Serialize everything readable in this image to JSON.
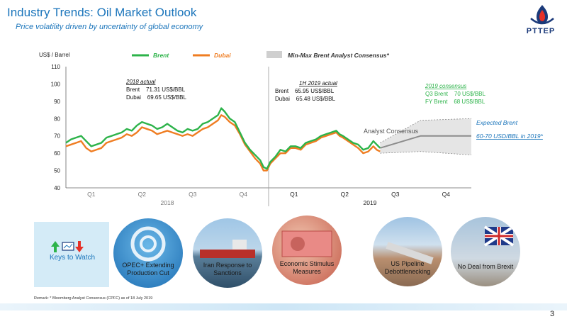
{
  "header": {
    "title": "Industry Trends: Oil Market Outlook",
    "subtitle": "Price volatility driven by uncertainty of global economy",
    "logo_text": "PTTEP"
  },
  "chart_data": {
    "type": "line",
    "ylabel": "US$ / Barrel",
    "ylim": [
      40,
      110
    ],
    "yticks": [
      40,
      50,
      60,
      70,
      80,
      90,
      100,
      110
    ],
    "quarters": [
      "Q1",
      "Q2",
      "Q3",
      "Q4",
      "Q1",
      "Q2",
      "Q3",
      "Q4"
    ],
    "years": [
      "2018",
      "2019"
    ],
    "legend": {
      "brent": "Brent",
      "dubai": "Dubai",
      "consensus": "Min-Max Brent Analyst Consensus*"
    },
    "colors": {
      "brent": "#2db34a",
      "dubai": "#ef7d22",
      "consensus_band": "#d0d0d0",
      "consensus_line": "#8c8c8c",
      "divider": "#9a9a9a"
    },
    "x_unit": "month (Jan 2018 = 0)",
    "series": [
      {
        "name": "Brent",
        "points": [
          [
            0,
            66
          ],
          [
            0.3,
            68
          ],
          [
            0.6,
            69
          ],
          [
            0.9,
            70
          ],
          [
            1.2,
            67
          ],
          [
            1.5,
            64
          ],
          [
            1.8,
            65
          ],
          [
            2.1,
            66
          ],
          [
            2.4,
            69
          ],
          [
            2.7,
            70
          ],
          [
            3.0,
            71
          ],
          [
            3.3,
            72
          ],
          [
            3.6,
            74
          ],
          [
            3.9,
            73
          ],
          [
            4.2,
            76
          ],
          [
            4.5,
            78
          ],
          [
            4.8,
            77
          ],
          [
            5.1,
            76
          ],
          [
            5.4,
            74
          ],
          [
            5.7,
            75
          ],
          [
            6.0,
            77
          ],
          [
            6.3,
            75
          ],
          [
            6.6,
            73
          ],
          [
            6.9,
            72
          ],
          [
            7.2,
            74
          ],
          [
            7.5,
            73
          ],
          [
            7.8,
            74
          ],
          [
            8.1,
            77
          ],
          [
            8.4,
            78
          ],
          [
            8.7,
            80
          ],
          [
            9.0,
            82
          ],
          [
            9.2,
            86
          ],
          [
            9.4,
            84
          ],
          [
            9.7,
            80
          ],
          [
            10.0,
            78
          ],
          [
            10.3,
            72
          ],
          [
            10.6,
            66
          ],
          [
            10.9,
            62
          ],
          [
            11.2,
            59
          ],
          [
            11.5,
            56
          ],
          [
            11.7,
            52
          ],
          [
            11.9,
            51
          ],
          [
            12.1,
            55
          ],
          [
            12.4,
            58
          ],
          [
            12.7,
            62
          ],
          [
            13.0,
            61
          ],
          [
            13.3,
            64
          ],
          [
            13.6,
            64
          ],
          [
            13.9,
            63
          ],
          [
            14.2,
            66
          ],
          [
            14.5,
            67
          ],
          [
            14.8,
            68
          ],
          [
            15.1,
            70
          ],
          [
            15.4,
            71
          ],
          [
            15.7,
            72
          ],
          [
            16.0,
            73
          ],
          [
            16.2,
            71
          ],
          [
            16.4,
            70
          ],
          [
            16.7,
            68
          ],
          [
            17.0,
            66
          ],
          [
            17.3,
            65
          ],
          [
            17.6,
            62
          ],
          [
            17.9,
            63
          ],
          [
            18.2,
            67
          ],
          [
            18.4,
            65
          ],
          [
            18.6,
            63
          ]
        ]
      },
      {
        "name": "Dubai",
        "points": [
          [
            0,
            64
          ],
          [
            0.3,
            65
          ],
          [
            0.6,
            66
          ],
          [
            0.9,
            67
          ],
          [
            1.2,
            63
          ],
          [
            1.5,
            61
          ],
          [
            1.8,
            62
          ],
          [
            2.1,
            63
          ],
          [
            2.4,
            66
          ],
          [
            2.7,
            67
          ],
          [
            3.0,
            68
          ],
          [
            3.3,
            69
          ],
          [
            3.6,
            71
          ],
          [
            3.9,
            70
          ],
          [
            4.2,
            72
          ],
          [
            4.5,
            75
          ],
          [
            4.8,
            74
          ],
          [
            5.1,
            73
          ],
          [
            5.4,
            71
          ],
          [
            5.7,
            72
          ],
          [
            6.0,
            73
          ],
          [
            6.3,
            72
          ],
          [
            6.6,
            71
          ],
          [
            6.9,
            70
          ],
          [
            7.2,
            71
          ],
          [
            7.5,
            70
          ],
          [
            7.8,
            72
          ],
          [
            8.1,
            74
          ],
          [
            8.4,
            75
          ],
          [
            8.7,
            77
          ],
          [
            9.0,
            79
          ],
          [
            9.2,
            82
          ],
          [
            9.4,
            81
          ],
          [
            9.7,
            78
          ],
          [
            10.0,
            76
          ],
          [
            10.3,
            71
          ],
          [
            10.6,
            65
          ],
          [
            10.9,
            61
          ],
          [
            11.2,
            57
          ],
          [
            11.5,
            54
          ],
          [
            11.7,
            50
          ],
          [
            11.9,
            50
          ],
          [
            12.1,
            54
          ],
          [
            12.4,
            57
          ],
          [
            12.7,
            60
          ],
          [
            13.0,
            60
          ],
          [
            13.3,
            63
          ],
          [
            13.6,
            63
          ],
          [
            13.9,
            62
          ],
          [
            14.2,
            65
          ],
          [
            14.5,
            66
          ],
          [
            14.8,
            67
          ],
          [
            15.1,
            69
          ],
          [
            15.4,
            70
          ],
          [
            15.7,
            71
          ],
          [
            16.0,
            72
          ],
          [
            16.2,
            70
          ],
          [
            16.4,
            69
          ],
          [
            16.7,
            67
          ],
          [
            17.0,
            65
          ],
          [
            17.3,
            63
          ],
          [
            17.6,
            60
          ],
          [
            17.9,
            61
          ],
          [
            18.2,
            64
          ],
          [
            18.4,
            62
          ],
          [
            18.6,
            61
          ]
        ]
      }
    ],
    "consensus": {
      "label": "Analyst Consensus",
      "center": [
        [
          18.6,
          63
        ],
        [
          21,
          70
        ],
        [
          24,
          70
        ]
      ],
      "upper": [
        [
          18.6,
          66
        ],
        [
          21,
          79
        ],
        [
          24,
          80
        ]
      ],
      "lower": [
        [
          18.6,
          60
        ],
        [
          21,
          61
        ],
        [
          24,
          59
        ]
      ]
    },
    "annotations": {
      "actual_2018_title": "2018 actual",
      "actual_2018_brent": "Brent    71.31 US$/BBL",
      "actual_2018_dubai": "Dubai    69.65 US$/BBL",
      "actual_1h2019_title": "1H  2019 actual",
      "actual_1h2019_brent": "Brent    65.95 US$/BBL",
      "actual_1h2019_dubai": "Dubai    65.48 US$/BBL",
      "consensus_title": "2019 consensus",
      "consensus_q3": "Q3 Brent    70 US$/BBL",
      "consensus_fy": "FY Brent    68 US$/BBL",
      "expected_title": "Expected Brent",
      "expected_value": "60-70 USD/BBL in 2019*"
    }
  },
  "keys": {
    "label": "Keys to Watch",
    "items": [
      {
        "label": "OPEC+ Extending Production Cut"
      },
      {
        "label": "Iran Response to Sanctions"
      },
      {
        "label": "Economic Stimulus Measures"
      },
      {
        "label": "US Pipeline Debottlenecking"
      },
      {
        "label": "No Deal from Brexit"
      }
    ]
  },
  "footer": {
    "remark": "Remark: * Bloomberg Analyst Consensus (CPFC) as of 18 July 2019",
    "page": "3"
  }
}
